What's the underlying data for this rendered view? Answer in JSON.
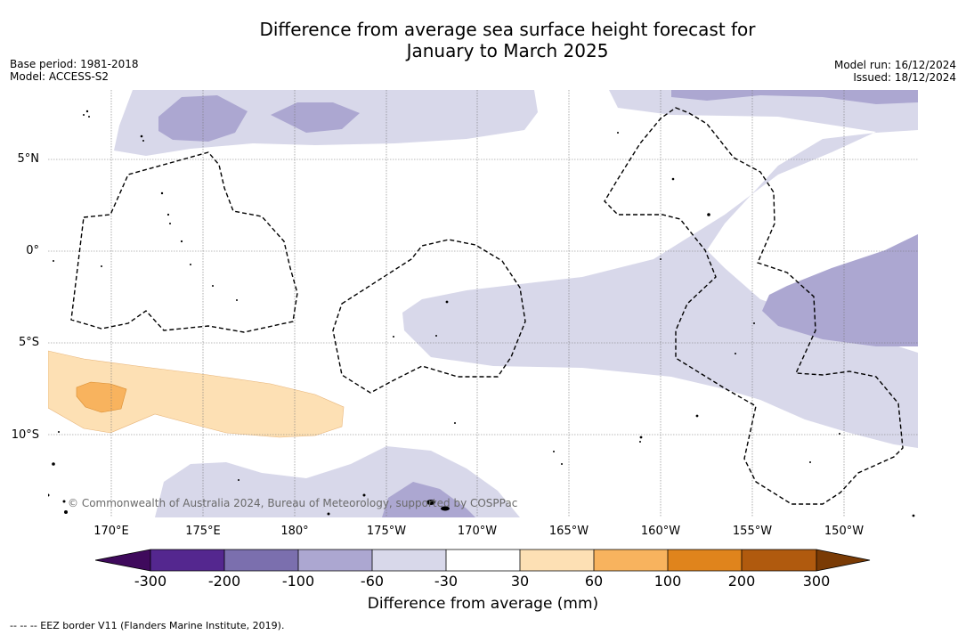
{
  "title_line1": "Difference from average sea surface height forecast for",
  "title_line2": "January to March 2025",
  "base_period": "Base period: 1981-2018",
  "model": "Model: ACCESS-S2",
  "model_run": "Model run: 16/12/2024",
  "issued": "Issued: 18/12/2024",
  "lat_labels": [
    "5°N",
    "0°",
    "5°S",
    "10°S"
  ],
  "lon_labels": [
    "170°E",
    "175°E",
    "180°",
    "175°W",
    "170°W",
    "165°W",
    "160°W",
    "155°W",
    "150°W"
  ],
  "copyright": "© Commonwealth of Australia 2024, Bureau of Meteorology, supported by COSPPac",
  "colorbar": {
    "ticks": [
      "-300",
      "-200",
      "-100",
      "-60",
      "-30",
      "30",
      "60",
      "100",
      "200",
      "300"
    ],
    "colors": [
      "#3f0a5c",
      "#54278f",
      "#7b6fae",
      "#aca7d1",
      "#d8d8ea",
      "#ffffff",
      "#fde0b4",
      "#f8b35e",
      "#e0841c",
      "#b05a0e",
      "#7a3b05"
    ],
    "label": "Difference from average (mm)"
  },
  "legend_note": "--  --  -- EEZ border V11 (Flanders Marine Institute, 2019)."
}
